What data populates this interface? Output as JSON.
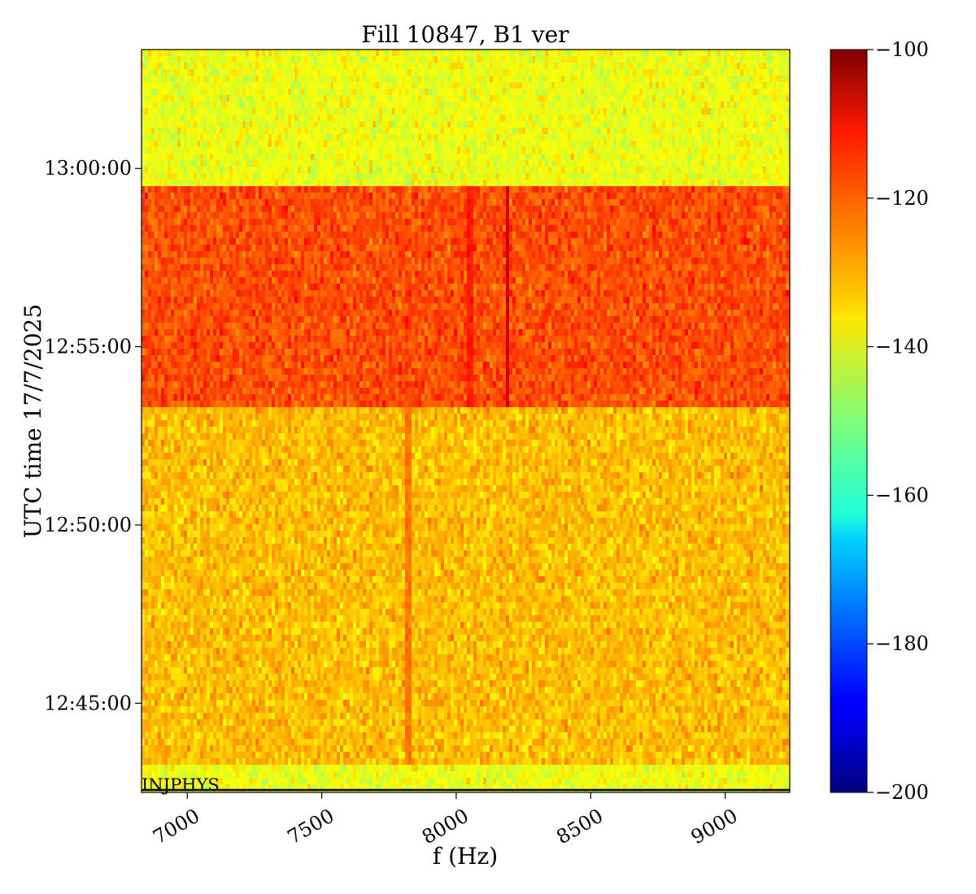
{
  "chart_data": {
    "type": "heatmap",
    "title": "Fill 10847, B1 ver",
    "xlabel": "f (Hz)",
    "ylabel": "UTC time 17/7/2025",
    "xlim": [
      6830,
      9240
    ],
    "x_ticks": [
      7000,
      7500,
      8000,
      8500,
      9000
    ],
    "x_tick_labels": [
      "7000",
      "7500",
      "8000",
      "8500",
      "9000"
    ],
    "ylim": [
      "12:42:30",
      "13:03:20"
    ],
    "y_ticks": [
      "12:45:00",
      "12:50:00",
      "12:55:00",
      "13:00:00"
    ],
    "y_tick_labels": [
      "12:45:00",
      "12:50:00",
      "12:55:00",
      "13:00:00"
    ],
    "colormap": "jet",
    "colorbar": {
      "range": [
        -200,
        -100
      ],
      "ticks": [
        -100,
        -120,
        -140,
        -160,
        -180,
        -200
      ],
      "tick_labels": [
        "−100",
        "−120",
        "−140",
        "−160",
        "−180",
        "−200"
      ]
    },
    "regions": [
      {
        "time_start": "12:42:30",
        "time_end": "12:43:20",
        "mean_level": -139
      },
      {
        "time_start": "12:43:20",
        "time_end": "12:53:15",
        "mean_level": -131
      },
      {
        "time_start": "12:53:15",
        "time_end": "12:59:35",
        "mean_level": -120
      },
      {
        "time_start": "12:59:35",
        "time_end": "13:03:20",
        "mean_level": -139
      }
    ],
    "lines": [
      {
        "frequency_hz": 8190,
        "time_start": "12:53:15",
        "time_end": "12:59:35",
        "level": -108
      },
      {
        "frequency_hz": 7820,
        "time_start": "12:43:20",
        "time_end": "12:53:15",
        "level": -124
      },
      {
        "frequency_hz": 8050,
        "time_start": "12:53:15",
        "time_end": "12:59:35",
        "level": -115
      }
    ],
    "annotation": "INJPHYS"
  }
}
